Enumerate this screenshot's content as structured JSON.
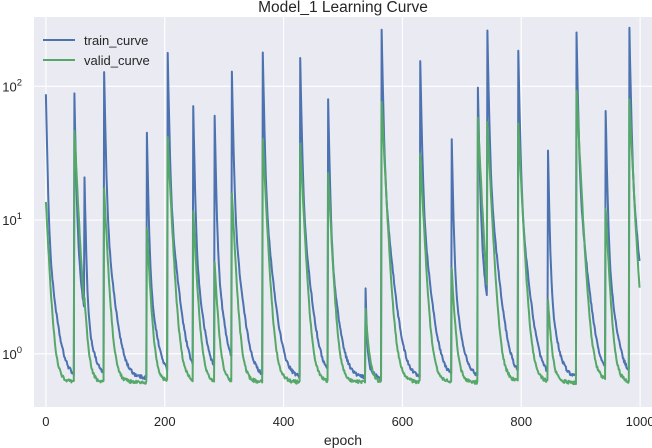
{
  "chart_data": {
    "type": "line",
    "title": "Model_1 Learning Curve",
    "xlabel": "epoch",
    "ylabel": "",
    "xlim": [
      -20,
      1020
    ],
    "ylim": [
      0.4,
      330
    ],
    "yscale": "log",
    "xticks": [
      0,
      200,
      400,
      600,
      800,
      1000
    ],
    "xtick_labels": [
      "0",
      "200",
      "400",
      "600",
      "800",
      "1000"
    ],
    "yticks": [
      1,
      10,
      100
    ],
    "ytick_labels": [
      {
        "base": "10",
        "exp": "0"
      },
      {
        "base": "10",
        "exp": "1"
      },
      {
        "base": "10",
        "exp": "2"
      }
    ],
    "grid": true,
    "legend_position": "top-left",
    "background_color": "#eaeaf2",
    "grid_color": "#ffffff",
    "baseline": {
      "start": 1000,
      "end": 999,
      "train_floor": 0.66,
      "valid_floor": 0.61
    },
    "series": [
      {
        "name": "train_curve",
        "color": "#4c72b0",
        "restarts": [
          {
            "epoch": 0,
            "peak": 80
          },
          {
            "epoch": 48,
            "peak": 78
          },
          {
            "epoch": 65,
            "peak": 18.5
          },
          {
            "epoch": 98,
            "peak": 115
          },
          {
            "epoch": 170,
            "peak": 40
          },
          {
            "epoch": 205,
            "peak": 160
          },
          {
            "epoch": 248,
            "peak": 62
          },
          {
            "epoch": 284,
            "peak": 54
          },
          {
            "epoch": 313,
            "peak": 118
          },
          {
            "epoch": 365,
            "peak": 165
          },
          {
            "epoch": 428,
            "peak": 145
          },
          {
            "epoch": 475,
            "peak": 72
          },
          {
            "epoch": 538,
            "peak": 2.75
          },
          {
            "epoch": 565,
            "peak": 240
          },
          {
            "epoch": 630,
            "peak": 142
          },
          {
            "epoch": 683,
            "peak": 37
          },
          {
            "epoch": 727,
            "peak": 90
          },
          {
            "epoch": 743,
            "peak": 230
          },
          {
            "epoch": 795,
            "peak": 165
          },
          {
            "epoch": 845,
            "peak": 29
          },
          {
            "epoch": 893,
            "peak": 220
          },
          {
            "epoch": 942,
            "peak": 60
          },
          {
            "epoch": 982,
            "peak": 240
          }
        ]
      },
      {
        "name": "valid_curve",
        "color": "#55a868",
        "restarts": [
          {
            "epoch": 0,
            "peak": 13
          },
          {
            "epoch": 48,
            "peak": 44
          },
          {
            "epoch": 65,
            "peak": 2.5
          },
          {
            "epoch": 98,
            "peak": 16
          },
          {
            "epoch": 170,
            "peak": 8
          },
          {
            "epoch": 205,
            "peak": 38
          },
          {
            "epoch": 248,
            "peak": 11
          },
          {
            "epoch": 284,
            "peak": 4.5
          },
          {
            "epoch": 313,
            "peak": 15
          },
          {
            "epoch": 365,
            "peak": 38
          },
          {
            "epoch": 428,
            "peak": 35
          },
          {
            "epoch": 475,
            "peak": 21
          },
          {
            "epoch": 538,
            "peak": 2.0
          },
          {
            "epoch": 565,
            "peak": 72
          },
          {
            "epoch": 630,
            "peak": 30
          },
          {
            "epoch": 683,
            "peak": 4.0
          },
          {
            "epoch": 727,
            "peak": 53
          },
          {
            "epoch": 743,
            "peak": 50
          },
          {
            "epoch": 795,
            "peak": 48
          },
          {
            "epoch": 845,
            "peak": 2.4
          },
          {
            "epoch": 893,
            "peak": 88
          },
          {
            "epoch": 942,
            "peak": 11.5
          },
          {
            "epoch": 982,
            "peak": 72
          }
        ]
      }
    ]
  }
}
